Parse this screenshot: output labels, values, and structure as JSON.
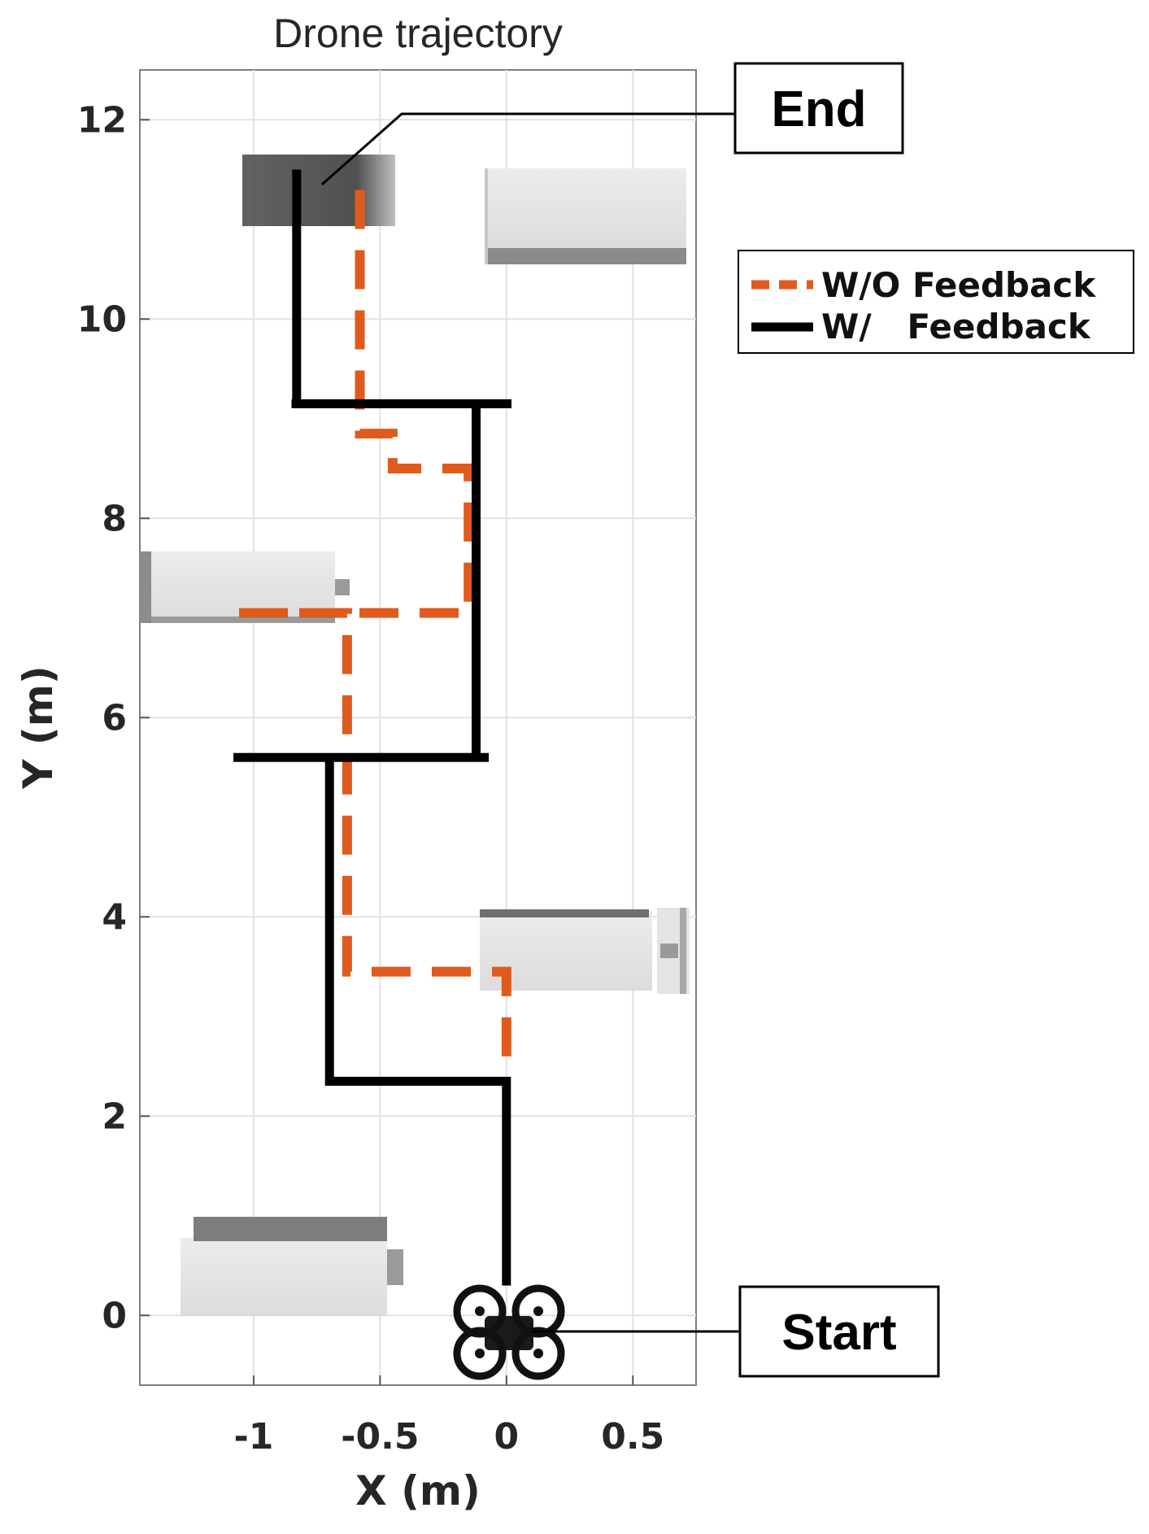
{
  "chart_data": {
    "type": "line",
    "title": "Drone trajectory",
    "xlabel": "X (m)",
    "ylabel": "Y (m)",
    "xlim": [
      -1.45,
      0.75
    ],
    "ylim": [
      -0.7,
      12.5
    ],
    "xticks": [
      -1,
      -0.5,
      0,
      0.5
    ],
    "xtick_labels": [
      "-1",
      "-0.5",
      "0",
      "0.5"
    ],
    "yticks": [
      0,
      2,
      4,
      6,
      8,
      10,
      12
    ],
    "ytick_labels": [
      "0",
      "2",
      "4",
      "6",
      "8",
      "10",
      "12"
    ],
    "grid": true,
    "legend_placement": "outside right, upper",
    "series": [
      {
        "name": "W/O Feedback",
        "style": "dashed",
        "color": "#E05A1E",
        "x": [
          0.0,
          0.0,
          -0.63,
          -0.63,
          -1.08,
          -0.15,
          -0.15,
          -0.45,
          -0.45,
          -0.58,
          -0.58
        ],
        "y": [
          2.6,
          3.45,
          3.45,
          7.05,
          7.05,
          7.05,
          8.5,
          8.5,
          8.85,
          8.85,
          11.3
        ]
      },
      {
        "name": "W/   Feedback",
        "style": "solid",
        "color": "#000000",
        "x": [
          0.0,
          0.0,
          -0.7,
          -0.7,
          -1.08,
          -0.07,
          -0.12,
          -0.12,
          -0.85,
          0.02,
          -0.83,
          -0.83
        ],
        "y": [
          0.3,
          2.35,
          2.35,
          5.6,
          5.6,
          5.6,
          5.6,
          9.15,
          9.15,
          9.15,
          9.15,
          11.5
        ]
      }
    ],
    "annotations": [
      {
        "text": "End",
        "x": -0.73,
        "y": 11.35
      },
      {
        "text": "Start",
        "x": 0.1,
        "y": -0.15
      }
    ],
    "obstacles": [
      {
        "label": "",
        "shade": "dark"
      },
      {
        "label": "",
        "shade": "light"
      },
      {
        "label": "",
        "shade": "light"
      },
      {
        "label": "",
        "shade": "light"
      },
      {
        "label": "",
        "shade": "light"
      }
    ],
    "marker_icon": "drone-icon"
  }
}
